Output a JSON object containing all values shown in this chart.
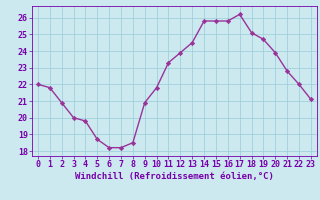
{
  "x": [
    0,
    1,
    2,
    3,
    4,
    5,
    6,
    7,
    8,
    9,
    10,
    11,
    12,
    13,
    14,
    15,
    16,
    17,
    18,
    19,
    20,
    21,
    22,
    23
  ],
  "y": [
    22.0,
    21.8,
    20.9,
    20.0,
    19.8,
    18.7,
    18.2,
    18.2,
    18.5,
    20.9,
    21.8,
    23.3,
    23.9,
    24.5,
    25.8,
    25.8,
    25.8,
    26.2,
    25.1,
    24.7,
    23.9,
    22.8,
    22.0,
    21.1
  ],
  "ylim": [
    17.7,
    26.7
  ],
  "yticks": [
    18,
    19,
    20,
    21,
    22,
    23,
    24,
    25,
    26
  ],
  "xlim": [
    -0.5,
    23.5
  ],
  "xticks": [
    0,
    1,
    2,
    3,
    4,
    5,
    6,
    7,
    8,
    9,
    10,
    11,
    12,
    13,
    14,
    15,
    16,
    17,
    18,
    19,
    20,
    21,
    22,
    23
  ],
  "line_color": "#993399",
  "marker": "D",
  "marker_size": 2.2,
  "line_width": 1.0,
  "bg_color": "#cce9f0",
  "grid_color": "#99ccd9",
  "xlabel": "Windchill (Refroidissement éolien,°C)",
  "xlabel_color": "#7700aa",
  "tick_color": "#7700aa",
  "tick_fontsize": 6.0,
  "xlabel_fontsize": 6.5
}
